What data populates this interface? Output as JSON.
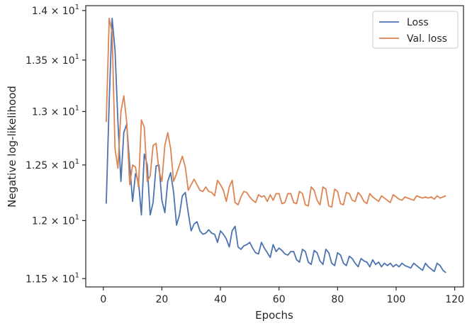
{
  "chart_data": {
    "type": "line",
    "xlabel": "Epochs",
    "ylabel": "Negative log-likelihood",
    "xlim": [
      -6,
      123
    ],
    "ylim": [
      11.43,
      14.05
    ],
    "y_scale": "log",
    "grid": false,
    "legend_position": "top-right",
    "x_ticks": [
      0,
      20,
      40,
      60,
      80,
      100,
      120
    ],
    "x_tick_labels": [
      "0",
      "20",
      "40",
      "60",
      "80",
      "100",
      "120"
    ],
    "y_ticks": [
      {
        "value": 11.5,
        "mantissa": "1.15",
        "exponent": "1"
      },
      {
        "value": 12.0,
        "mantissa": "1.2",
        "exponent": "1"
      },
      {
        "value": 12.5,
        "mantissa": "1.25",
        "exponent": "1"
      },
      {
        "value": 13.0,
        "mantissa": "1.3",
        "exponent": "1"
      },
      {
        "value": 13.5,
        "mantissa": "1.35",
        "exponent": "1"
      },
      {
        "value": 14.0,
        "mantissa": "1.4",
        "exponent": "1"
      }
    ],
    "y_tick_base": "10",
    "y_tick_times": "×",
    "series": [
      {
        "name": "Loss",
        "color": "#4c72b0",
        "x": [
          1,
          2,
          3,
          4,
          5,
          6,
          7,
          8,
          9,
          10,
          11,
          12,
          13,
          14,
          15,
          16,
          17,
          18,
          19,
          20,
          21,
          22,
          23,
          24,
          25,
          26,
          27,
          28,
          29,
          30,
          31,
          32,
          33,
          34,
          35,
          36,
          37,
          38,
          39,
          40,
          41,
          42,
          43,
          44,
          45,
          46,
          47,
          48,
          49,
          50,
          51,
          52,
          53,
          54,
          55,
          56,
          57,
          58,
          59,
          60,
          61,
          62,
          63,
          64,
          65,
          66,
          67,
          68,
          69,
          70,
          71,
          72,
          73,
          74,
          75,
          76,
          77,
          78,
          79,
          80,
          81,
          82,
          83,
          84,
          85,
          86,
          87,
          88,
          89,
          90,
          91,
          92,
          93,
          94,
          95,
          96,
          97,
          98,
          99,
          100,
          101,
          102,
          103,
          104,
          105,
          106,
          107,
          108,
          109,
          110,
          111,
          112,
          113,
          114,
          115,
          116,
          117
        ],
        "y": [
          12.15,
          13.1,
          13.92,
          13.6,
          12.9,
          12.35,
          12.8,
          12.88,
          12.5,
          12.17,
          12.42,
          12.35,
          12.05,
          12.6,
          12.5,
          12.05,
          12.16,
          12.49,
          12.5,
          12.18,
          12.07,
          12.35,
          12.43,
          12.25,
          11.96,
          12.05,
          12.22,
          12.25,
          12.07,
          11.91,
          11.97,
          11.99,
          11.91,
          11.88,
          11.89,
          11.92,
          11.89,
          11.88,
          11.81,
          11.91,
          11.88,
          11.84,
          11.77,
          11.91,
          11.95,
          11.77,
          11.75,
          11.78,
          11.79,
          11.81,
          11.76,
          11.72,
          11.71,
          11.81,
          11.76,
          11.72,
          11.68,
          11.79,
          11.73,
          11.76,
          11.74,
          11.71,
          11.7,
          11.73,
          11.73,
          11.66,
          11.64,
          11.75,
          11.73,
          11.64,
          11.62,
          11.74,
          11.72,
          11.65,
          11.62,
          11.75,
          11.72,
          11.63,
          11.61,
          11.72,
          11.7,
          11.63,
          11.61,
          11.69,
          11.67,
          11.63,
          11.6,
          11.67,
          11.65,
          11.64,
          11.6,
          11.66,
          11.62,
          11.64,
          11.6,
          11.63,
          11.61,
          11.63,
          11.6,
          11.62,
          11.6,
          11.63,
          11.61,
          11.6,
          11.59,
          11.63,
          11.61,
          11.59,
          11.57,
          11.63,
          11.6,
          11.58,
          11.56,
          11.63,
          11.61,
          11.57,
          11.55
        ]
      },
      {
        "name": "Val. loss",
        "color": "#dd8452",
        "x": [
          1,
          2,
          3,
          4,
          5,
          6,
          7,
          8,
          9,
          10,
          11,
          12,
          13,
          14,
          15,
          16,
          17,
          18,
          19,
          20,
          21,
          22,
          23,
          24,
          25,
          26,
          27,
          28,
          29,
          30,
          31,
          32,
          33,
          34,
          35,
          36,
          37,
          38,
          39,
          40,
          41,
          42,
          43,
          44,
          45,
          46,
          47,
          48,
          49,
          50,
          51,
          52,
          53,
          54,
          55,
          56,
          57,
          58,
          59,
          60,
          61,
          62,
          63,
          64,
          65,
          66,
          67,
          68,
          69,
          70,
          71,
          72,
          73,
          74,
          75,
          76,
          77,
          78,
          79,
          80,
          81,
          82,
          83,
          84,
          85,
          86,
          87,
          88,
          89,
          90,
          91,
          92,
          93,
          94,
          95,
          96,
          97,
          98,
          99,
          100,
          101,
          102,
          103,
          104,
          105,
          106,
          107,
          108,
          109,
          110,
          111,
          112,
          113,
          114,
          115,
          116,
          117
        ],
        "y": [
          12.9,
          13.92,
          13.78,
          12.65,
          12.47,
          13.0,
          13.15,
          12.9,
          12.32,
          12.5,
          12.48,
          12.3,
          12.92,
          12.85,
          12.35,
          12.4,
          12.68,
          12.7,
          12.45,
          12.35,
          12.68,
          12.8,
          12.65,
          12.35,
          12.42,
          12.5,
          12.58,
          12.48,
          12.27,
          12.32,
          12.37,
          12.32,
          12.27,
          12.26,
          12.3,
          12.26,
          12.25,
          12.22,
          12.36,
          12.32,
          12.27,
          12.17,
          12.3,
          12.36,
          12.16,
          12.14,
          12.21,
          12.26,
          12.25,
          12.21,
          12.18,
          12.16,
          12.23,
          12.21,
          12.22,
          12.17,
          12.23,
          12.18,
          12.24,
          12.24,
          12.15,
          12.16,
          12.24,
          12.24,
          12.16,
          12.15,
          12.26,
          12.24,
          12.14,
          12.13,
          12.3,
          12.27,
          12.18,
          12.14,
          12.3,
          12.28,
          12.13,
          12.12,
          12.28,
          12.26,
          12.15,
          12.14,
          12.25,
          12.24,
          12.18,
          12.17,
          12.25,
          12.22,
          12.17,
          12.15,
          12.24,
          12.21,
          12.19,
          12.17,
          12.22,
          12.2,
          12.18,
          12.16,
          12.23,
          12.21,
          12.19,
          12.18,
          12.21,
          12.2,
          12.19,
          12.18,
          12.22,
          12.21,
          12.2,
          12.21,
          12.2,
          12.21,
          12.19,
          12.22,
          12.2,
          12.21,
          12.22
        ]
      }
    ]
  }
}
